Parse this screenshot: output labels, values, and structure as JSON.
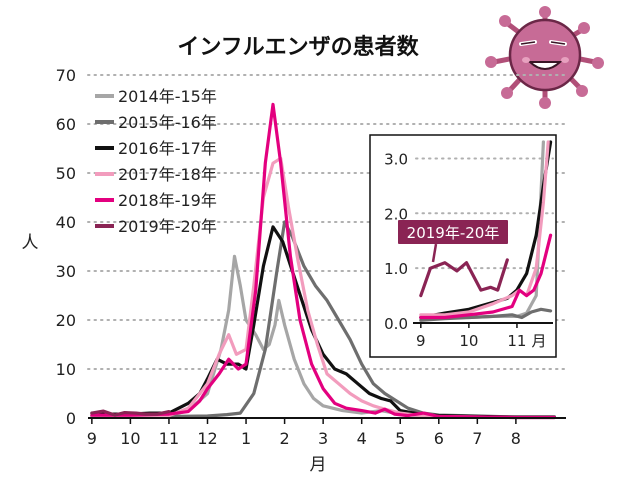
{
  "chart_data": [
    {
      "type": "line",
      "title": "インフルエンザの患者数",
      "ylabel": "人",
      "xlabel": "月",
      "ylim": [
        0,
        70
      ],
      "yticks": [
        0,
        10,
        20,
        30,
        40,
        50,
        60,
        70
      ],
      "xticks": [
        {
          "label": "9",
          "x": 0
        },
        {
          "label": "10",
          "x": 1
        },
        {
          "label": "11",
          "x": 2
        },
        {
          "label": "12",
          "x": 3
        },
        {
          "label": "1",
          "x": 4
        },
        {
          "label": "2",
          "x": 5
        },
        {
          "label": "3",
          "x": 6
        },
        {
          "label": "4",
          "x": 7
        },
        {
          "label": "5",
          "x": 8
        },
        {
          "label": "6",
          "x": 9
        },
        {
          "label": "7",
          "x": 10
        },
        {
          "label": "8",
          "x": 11
        }
      ],
      "xlim": [
        -0.1,
        12.3
      ],
      "grid": "horizontal-dotted",
      "legend_position": "top-left",
      "series": [
        {
          "name": "2014年-15年",
          "color": "#a6a6a6",
          "points": [
            [
              0,
              0.5
            ],
            [
              0.5,
              0.5
            ],
            [
              1,
              0.5
            ],
            [
              1.5,
              0.5
            ],
            [
              2,
              0.5
            ],
            [
              2.5,
              1.5
            ],
            [
              3,
              5
            ],
            [
              3.35,
              14
            ],
            [
              3.55,
              22
            ],
            [
              3.7,
              33
            ],
            [
              3.85,
              27
            ],
            [
              4.0,
              20
            ],
            [
              4.25,
              17
            ],
            [
              4.45,
              14
            ],
            [
              4.6,
              15
            ],
            [
              4.75,
              19
            ],
            [
              4.85,
              24
            ],
            [
              5,
              19
            ],
            [
              5.25,
              12
            ],
            [
              5.5,
              7
            ],
            [
              5.75,
              4
            ],
            [
              6,
              2.5
            ],
            [
              6.5,
              1.5
            ],
            [
              7,
              1
            ],
            [
              7.5,
              1.5
            ],
            [
              8,
              0.8
            ],
            [
              8.5,
              0.5
            ],
            [
              9,
              0.3
            ],
            [
              10,
              0.2
            ],
            [
              11,
              0.1
            ],
            [
              12,
              0.1
            ]
          ]
        },
        {
          "name": "2015年-16年",
          "color": "#6e6e6e",
          "points": [
            [
              0,
              0.3
            ],
            [
              1,
              0.3
            ],
            [
              2,
              0.3
            ],
            [
              3,
              0.4
            ],
            [
              3.5,
              0.7
            ],
            [
              3.85,
              1
            ],
            [
              4.2,
              5
            ],
            [
              4.5,
              14
            ],
            [
              4.8,
              30
            ],
            [
              5.0,
              40
            ],
            [
              5.2,
              37
            ],
            [
              5.5,
              31
            ],
            [
              5.8,
              27
            ],
            [
              6.1,
              24
            ],
            [
              6.4,
              20
            ],
            [
              6.7,
              16
            ],
            [
              7,
              11
            ],
            [
              7.3,
              7
            ],
            [
              7.6,
              5
            ],
            [
              7.9,
              3.5
            ],
            [
              8.2,
              2
            ],
            [
              8.6,
              1
            ],
            [
              9,
              0.6
            ],
            [
              10,
              0.4
            ],
            [
              11,
              0.2
            ],
            [
              12,
              0.2
            ]
          ]
        },
        {
          "name": "2016年-17年",
          "color": "#111111",
          "points": [
            [
              0,
              1
            ],
            [
              0.5,
              0.8
            ],
            [
              1,
              0.8
            ],
            [
              1.5,
              1
            ],
            [
              2,
              1
            ],
            [
              2.5,
              3
            ],
            [
              2.8,
              5
            ],
            [
              3.0,
              8
            ],
            [
              3.25,
              12
            ],
            [
              3.5,
              11
            ],
            [
              3.8,
              11
            ],
            [
              4.0,
              10
            ],
            [
              4.2,
              19
            ],
            [
              4.45,
              31
            ],
            [
              4.7,
              39
            ],
            [
              4.95,
              36
            ],
            [
              5.2,
              30
            ],
            [
              5.45,
              24
            ],
            [
              5.7,
              18
            ],
            [
              6.0,
              13
            ],
            [
              6.3,
              10
            ],
            [
              6.6,
              9
            ],
            [
              6.9,
              7
            ],
            [
              7.2,
              5
            ],
            [
              7.5,
              4
            ],
            [
              7.75,
              3.5
            ],
            [
              8,
              1.5
            ],
            [
              8.5,
              0.8
            ],
            [
              9,
              0.5
            ],
            [
              10,
              0.3
            ],
            [
              11,
              0.2
            ],
            [
              12,
              0.2
            ]
          ]
        },
        {
          "name": "2017年-18年",
          "color": "#f29cbd",
          "points": [
            [
              0,
              0.5
            ],
            [
              1,
              0.5
            ],
            [
              2,
              0.5
            ],
            [
              2.5,
              2
            ],
            [
              3.0,
              7
            ],
            [
              3.3,
              13
            ],
            [
              3.55,
              17
            ],
            [
              3.75,
              13
            ],
            [
              4.0,
              14
            ],
            [
              4.2,
              27
            ],
            [
              4.45,
              45
            ],
            [
              4.7,
              52
            ],
            [
              4.9,
              53
            ],
            [
              5.1,
              43
            ],
            [
              5.35,
              32
            ],
            [
              5.6,
              22
            ],
            [
              5.85,
              15
            ],
            [
              6.1,
              9
            ],
            [
              6.4,
              7
            ],
            [
              6.7,
              5
            ],
            [
              7,
              3.5
            ],
            [
              7.3,
              2.5
            ],
            [
              7.6,
              1.8
            ],
            [
              8,
              1
            ],
            [
              8.5,
              0.5
            ],
            [
              9,
              0.3
            ],
            [
              10,
              0.2
            ],
            [
              11,
              0.1
            ],
            [
              12,
              0.1
            ]
          ]
        },
        {
          "name": "2018年-19年",
          "color": "#e3007f",
          "points": [
            [
              0,
              0.6
            ],
            [
              1,
              0.6
            ],
            [
              2,
              0.8
            ],
            [
              2.5,
              1.3
            ],
            [
              2.8,
              3.5
            ],
            [
              3.0,
              6
            ],
            [
              3.3,
              9
            ],
            [
              3.55,
              12
            ],
            [
              3.8,
              10
            ],
            [
              4.0,
              11
            ],
            [
              4.25,
              26
            ],
            [
              4.5,
              52
            ],
            [
              4.7,
              64
            ],
            [
              4.9,
              52
            ],
            [
              5.15,
              33
            ],
            [
              5.4,
              20
            ],
            [
              5.7,
              11
            ],
            [
              6.0,
              6
            ],
            [
              6.3,
              3
            ],
            [
              6.6,
              2
            ],
            [
              7,
              1.5
            ],
            [
              7.35,
              1
            ],
            [
              7.6,
              1.8
            ],
            [
              7.85,
              0.8
            ],
            [
              8.2,
              0.5
            ],
            [
              8.6,
              1
            ],
            [
              9,
              0.3
            ],
            [
              10,
              0.2
            ],
            [
              11,
              0.1
            ],
            [
              12,
              0.1
            ]
          ]
        },
        {
          "name": "2019年-20年",
          "color": "#8a2454",
          "points": [
            [
              0,
              1
            ],
            [
              0.3,
              1.4
            ],
            [
              0.6,
              0.6
            ],
            [
              0.85,
              1.1
            ],
            [
              1.15,
              1
            ],
            [
              1.4,
              0.8
            ],
            [
              1.7,
              0.8
            ],
            [
              2,
              1.3
            ]
          ]
        }
      ]
    },
    {
      "type": "line",
      "title": "",
      "ylabel": "",
      "xlabel": "月",
      "ylim": [
        0,
        3.3
      ],
      "yticks": [
        {
          "label": "0.0",
          "y": 0
        },
        {
          "label": "1.0",
          "y": 1
        },
        {
          "label": "2.0",
          "y": 2
        },
        {
          "label": "3.0",
          "y": 3
        }
      ],
      "xticks": [
        {
          "label": "9",
          "x": 0
        },
        {
          "label": "10",
          "x": 1
        },
        {
          "label": "11",
          "x": 2
        }
      ],
      "month_label": "月",
      "xlim": [
        -0.1,
        2.75
      ],
      "grid": "horizontal-dotted",
      "annotation": "2019年-20年",
      "series": [
        {
          "name": "2014年-15年",
          "color": "#a6a6a6",
          "points": [
            [
              0,
              0.1
            ],
            [
              0.5,
              0.12
            ],
            [
              1,
              0.1
            ],
            [
              1.5,
              0.12
            ],
            [
              2,
              0.12
            ],
            [
              2.2,
              0.18
            ],
            [
              2.4,
              0.5
            ],
            [
              2.55,
              3.3
            ]
          ]
        },
        {
          "name": "2015年-16年",
          "color": "#6e6e6e",
          "points": [
            [
              0,
              0.05
            ],
            [
              0.5,
              0.08
            ],
            [
              1,
              0.1
            ],
            [
              1.5,
              0.12
            ],
            [
              1.9,
              0.15
            ],
            [
              2.1,
              0.1
            ],
            [
              2.3,
              0.2
            ],
            [
              2.5,
              0.25
            ],
            [
              2.7,
              0.22
            ]
          ]
        },
        {
          "name": "2016年-17年",
          "color": "#111111",
          "points": [
            [
              0,
              0.1
            ],
            [
              0.5,
              0.18
            ],
            [
              1,
              0.25
            ],
            [
              1.4,
              0.35
            ],
            [
              1.8,
              0.45
            ],
            [
              2.0,
              0.6
            ],
            [
              2.2,
              0.9
            ],
            [
              2.4,
              1.6
            ],
            [
              2.55,
              2.5
            ],
            [
              2.7,
              3.3
            ]
          ]
        },
        {
          "name": "2017年-18年",
          "color": "#f29cbd",
          "points": [
            [
              0,
              0.15
            ],
            [
              0.5,
              0.15
            ],
            [
              1,
              0.2
            ],
            [
              1.5,
              0.35
            ],
            [
              1.9,
              0.5
            ],
            [
              2.05,
              0.6
            ],
            [
              2.2,
              0.5
            ],
            [
              2.4,
              1.0
            ],
            [
              2.55,
              2.2
            ],
            [
              2.65,
              3.3
            ]
          ]
        },
        {
          "name": "2018年-19年",
          "color": "#e3007f",
          "points": [
            [
              0,
              0.1
            ],
            [
              0.5,
              0.1
            ],
            [
              1,
              0.15
            ],
            [
              1.5,
              0.2
            ],
            [
              1.9,
              0.3
            ],
            [
              2.05,
              0.6
            ],
            [
              2.2,
              0.5
            ],
            [
              2.35,
              0.6
            ],
            [
              2.5,
              0.9
            ],
            [
              2.7,
              1.6
            ]
          ]
        },
        {
          "name": "2019年-20年",
          "color": "#8a2454",
          "points": [
            [
              0,
              0.5
            ],
            [
              0.2,
              1.0
            ],
            [
              0.5,
              1.1
            ],
            [
              0.75,
              0.95
            ],
            [
              0.95,
              1.1
            ],
            [
              1.25,
              0.6
            ],
            [
              1.45,
              0.65
            ],
            [
              1.6,
              0.6
            ],
            [
              1.8,
              1.15
            ]
          ]
        }
      ]
    }
  ]
}
